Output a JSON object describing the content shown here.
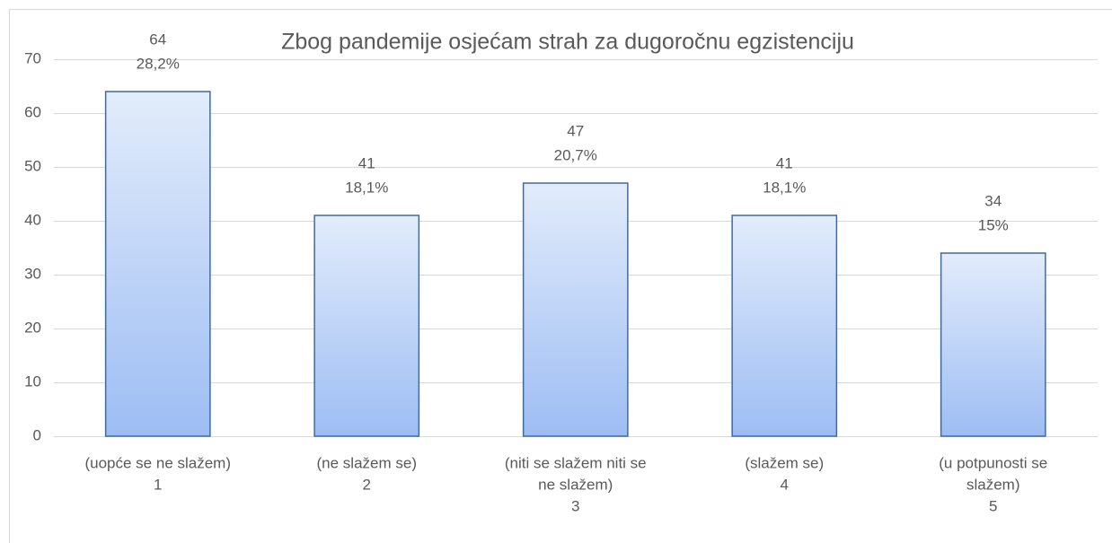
{
  "chart_data": {
    "type": "bar",
    "title": "Zbog pandemije osjećam strah za dugoročnu egzistenciju",
    "categories": [
      [
        "(uopće se ne slažem)",
        "1"
      ],
      [
        "(ne slažem se)",
        "2"
      ],
      [
        "(niti se slažem niti se",
        "ne slažem)",
        "3"
      ],
      [
        "(slažem se)",
        "4"
      ],
      [
        "(u potpunosti se",
        "slažem)",
        "5"
      ]
    ],
    "values": [
      64,
      41,
      47,
      41,
      34
    ],
    "percent_labels": [
      "28,2%",
      "18,1%",
      "20,7%",
      "18,1%",
      "15%"
    ],
    "color": "#3d6aa6",
    "ylim": [
      0,
      70
    ],
    "yticks": [
      0,
      10,
      20,
      30,
      40,
      50,
      60,
      70
    ],
    "grid": true
  }
}
